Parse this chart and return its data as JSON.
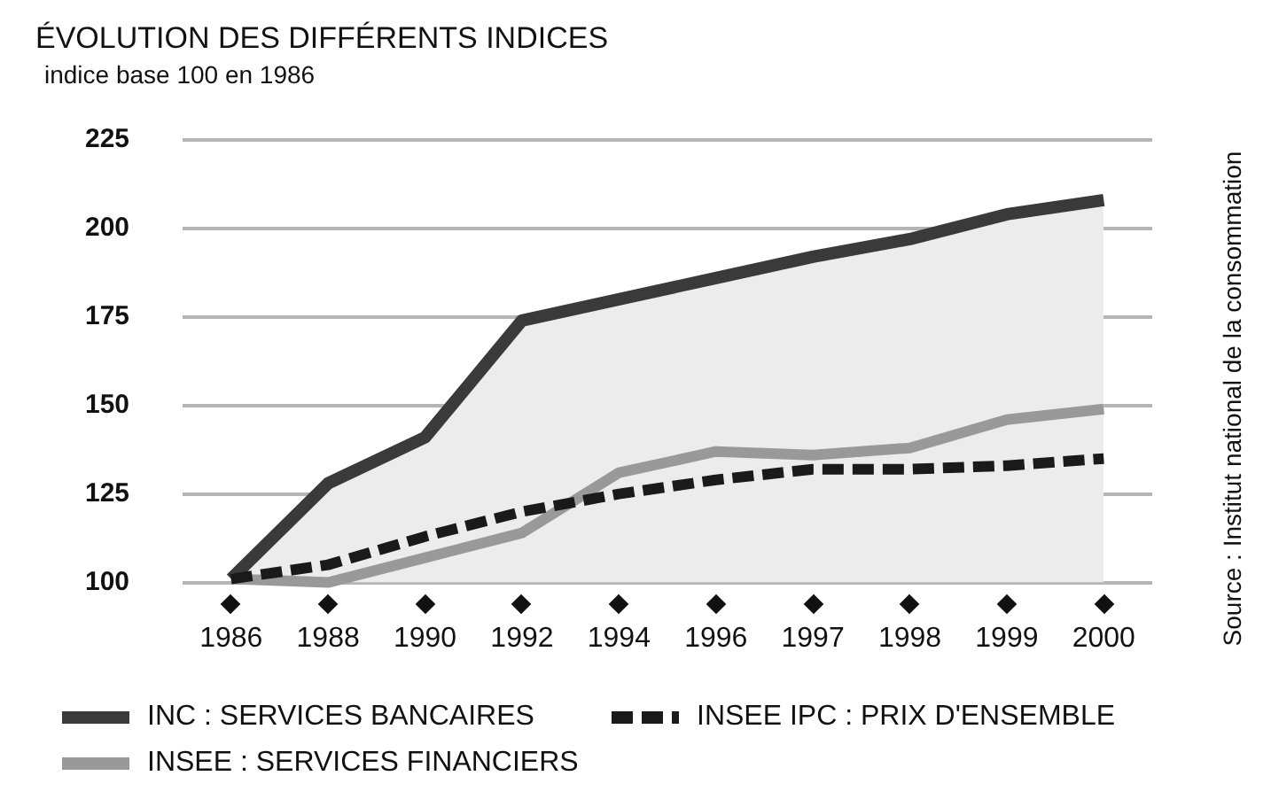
{
  "chart_data": {
    "type": "line",
    "title": "ÉVOLUTION DES DIFFÉRENTS INDICES",
    "subtitle": "indice base 100 en 1986",
    "categories": [
      "1986",
      "1988",
      "1990",
      "1992",
      "1994",
      "1996",
      "1997",
      "1998",
      "1999",
      "2000"
    ],
    "series": [
      {
        "name": "INC : SERVICES BANCAIRES",
        "type": "area",
        "color": "#3a3a3a",
        "values": [
          101,
          128,
          141,
          174,
          180,
          186,
          192,
          197,
          204,
          208
        ]
      },
      {
        "name": "INSEE IPC : PRIX D'ENSEMBLE",
        "color": "#1a1a1a",
        "line_style": "dashed",
        "values": [
          101,
          105,
          113,
          120,
          125,
          129,
          132,
          132,
          133,
          135
        ]
      },
      {
        "name": "INSEE : SERVICES FINANCIERS",
        "color": "#999999",
        "values": [
          101,
          100,
          107,
          114,
          131,
          137,
          136,
          138,
          146,
          149
        ]
      }
    ],
    "ylim": [
      100,
      225
    ],
    "yticks": [
      100,
      125,
      150,
      175,
      200,
      225
    ],
    "grid": "y",
    "legend": "bottom",
    "marker": "none",
    "annotations": [
      "Source : Institut national de la consommation"
    ]
  }
}
